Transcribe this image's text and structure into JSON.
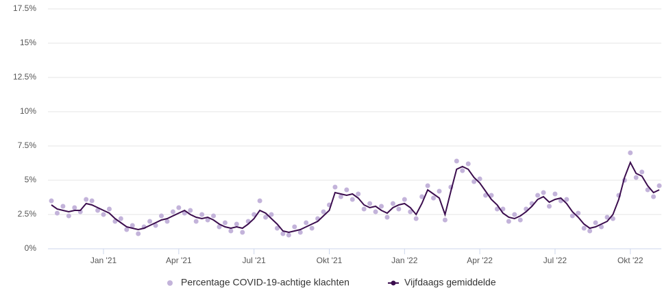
{
  "chart_data": {
    "type": "line",
    "categories": [
      null,
      null,
      null,
      null,
      null,
      null,
      null,
      null,
      null,
      "Jan '21",
      null,
      null,
      null,
      null,
      null,
      null,
      null,
      null,
      null,
      null,
      null,
      null,
      "Apr '21",
      null,
      null,
      null,
      null,
      null,
      null,
      null,
      null,
      null,
      null,
      null,
      null,
      "Jul '21",
      null,
      null,
      null,
      null,
      null,
      null,
      null,
      null,
      null,
      null,
      null,
      null,
      "Okt '21",
      null,
      null,
      null,
      null,
      null,
      null,
      null,
      null,
      null,
      null,
      null,
      null,
      "Jan '22",
      null,
      null,
      null,
      null,
      null,
      null,
      null,
      null,
      null,
      null,
      null,
      null,
      "Apr '22",
      null,
      null,
      null,
      null,
      null,
      null,
      null,
      null,
      null,
      null,
      null,
      null,
      "Jul '22",
      null,
      null,
      null,
      null,
      null,
      null,
      null,
      null,
      null,
      null,
      null,
      null,
      "Okt '22",
      null,
      null,
      null,
      null,
      null
    ],
    "series": [
      {
        "name": "Percentage COVID-19-achtige klachten",
        "type": "scatter",
        "color": "#c3b3da",
        "values": [
          3.5,
          2.6,
          3.1,
          2.4,
          3.0,
          2.7,
          3.6,
          3.5,
          2.8,
          2.5,
          2.9,
          2.0,
          2.2,
          1.4,
          1.7,
          1.1,
          1.6,
          2.0,
          1.7,
          2.4,
          2.0,
          2.7,
          3.0,
          2.6,
          2.8,
          2.0,
          2.5,
          2.1,
          2.4,
          1.6,
          1.9,
          1.3,
          1.8,
          1.2,
          2.0,
          2.5,
          3.5,
          2.3,
          2.5,
          1.5,
          1.1,
          1.0,
          1.6,
          1.2,
          1.9,
          1.5,
          2.2,
          2.7,
          3.2,
          4.5,
          3.8,
          4.3,
          3.6,
          4.0,
          2.9,
          3.3,
          2.7,
          3.1,
          2.3,
          3.3,
          2.9,
          3.6,
          2.7,
          2.2,
          3.8,
          4.6,
          3.7,
          4.2,
          2.1,
          4.5,
          6.4,
          5.7,
          6.2,
          4.9,
          5.1,
          3.9,
          3.9,
          2.9,
          2.9,
          2.0,
          2.5,
          2.1,
          2.9,
          3.3,
          3.9,
          4.1,
          3.1,
          4.0,
          3.5,
          3.6,
          2.4,
          2.6,
          1.5,
          1.3,
          1.9,
          1.6,
          2.3,
          2.2,
          3.9,
          5.0,
          7.0,
          5.2,
          5.6,
          4.3,
          3.8,
          4.6
        ]
      },
      {
        "name": "Vijfdaags gemiddelde",
        "type": "line",
        "color": "#3b0d4e",
        "values": [
          3.2,
          2.9,
          2.8,
          2.7,
          2.8,
          2.8,
          3.3,
          3.2,
          3.0,
          2.8,
          2.6,
          2.2,
          1.9,
          1.6,
          1.5,
          1.4,
          1.5,
          1.7,
          1.9,
          2.1,
          2.2,
          2.4,
          2.6,
          2.8,
          2.5,
          2.3,
          2.2,
          2.3,
          2.1,
          1.8,
          1.6,
          1.5,
          1.6,
          1.5,
          1.8,
          2.2,
          2.8,
          2.6,
          2.2,
          1.8,
          1.3,
          1.2,
          1.3,
          1.4,
          1.6,
          1.8,
          2.0,
          2.4,
          2.8,
          4.1,
          4.0,
          3.9,
          4.0,
          3.7,
          3.2,
          3.0,
          3.1,
          2.8,
          2.6,
          3.0,
          3.2,
          3.3,
          3.0,
          2.5,
          3.3,
          4.3,
          4.0,
          3.7,
          2.5,
          4.2,
          5.8,
          6.0,
          5.8,
          5.2,
          4.8,
          4.2,
          3.6,
          3.2,
          2.6,
          2.3,
          2.2,
          2.4,
          2.7,
          3.1,
          3.6,
          3.8,
          3.4,
          3.6,
          3.7,
          3.3,
          2.7,
          2.3,
          1.8,
          1.5,
          1.6,
          1.8,
          2.0,
          2.5,
          3.6,
          5.2,
          6.3,
          5.5,
          5.3,
          4.6,
          4.1,
          4.3
        ]
      }
    ],
    "ylim": [
      0,
      17.5
    ],
    "yticks": [
      {
        "value": 0,
        "label": "0%"
      },
      {
        "value": 2.5,
        "label": "2.5%"
      },
      {
        "value": 5,
        "label": "5%"
      },
      {
        "value": 7.5,
        "label": "7.5%"
      },
      {
        "value": 10,
        "label": "10%"
      },
      {
        "value": 12.5,
        "label": "12.5%"
      },
      {
        "value": 15,
        "label": "15%"
      },
      {
        "value": 17.5,
        "label": "17.5%"
      }
    ],
    "grid": true,
    "legend": "bottom"
  }
}
